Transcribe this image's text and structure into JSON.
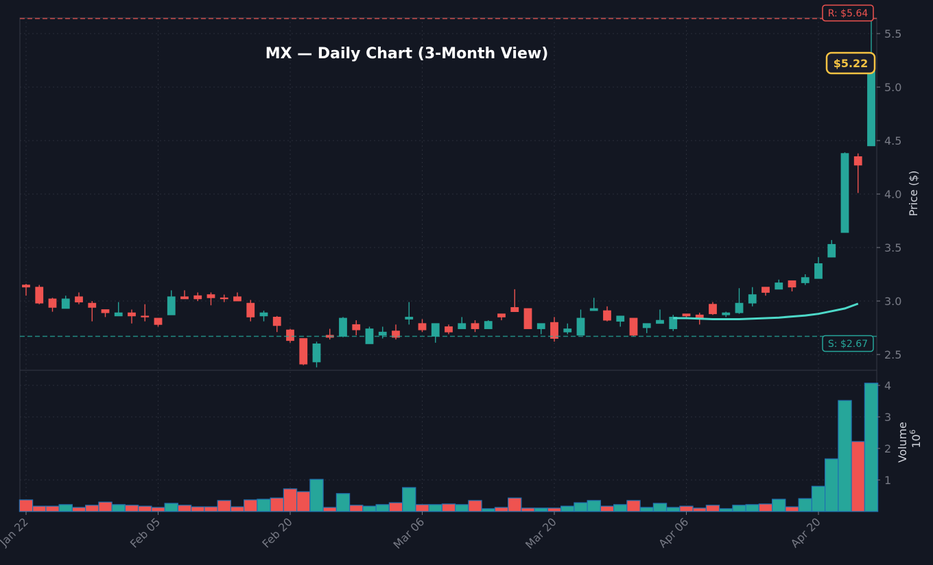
{
  "chart_data": {
    "type": "candlestick",
    "title": "MX — Daily Chart (3-Month View)",
    "ticker": "MX",
    "price_axis": {
      "label": "Price ($)",
      "ticks": [
        2.5,
        3.0,
        3.5,
        4.0,
        4.5,
        5.0,
        5.5
      ],
      "ylim": [
        2.34,
        5.67
      ]
    },
    "volume_axis": {
      "label": "Volume",
      "scale_label": "10^6",
      "ticks": [
        1,
        2,
        3,
        4
      ],
      "ylim": [
        0,
        4.1
      ]
    },
    "x_ticks": [
      {
        "label": "Jan 22",
        "index": 0
      },
      {
        "label": "Feb 05",
        "index": 10
      },
      {
        "label": "Feb 20",
        "index": 20
      },
      {
        "label": "Mar 06",
        "index": 30
      },
      {
        "label": "Mar 20",
        "index": 40
      },
      {
        "label": "Apr 06",
        "index": 50
      },
      {
        "label": "Apr 20",
        "index": 60
      }
    ],
    "resistance": {
      "label": "R: $5.64",
      "value": 5.64,
      "color": "#ef5350"
    },
    "support": {
      "label": "S: $2.67",
      "value": 2.67,
      "color": "#26a69a"
    },
    "current_price": {
      "label": "$5.22",
      "value": 5.22,
      "color": "#f6c343"
    },
    "moving_average": {
      "color": "#4dd9c9",
      "start_index": 49,
      "values": [
        2.84,
        2.84,
        2.835,
        2.83,
        2.83,
        2.83,
        2.835,
        2.84,
        2.845,
        2.855,
        2.865,
        2.88,
        2.905,
        2.93,
        2.975
      ]
    },
    "colors": {
      "up": "#26a69a",
      "down": "#ef5350",
      "background": "#131722",
      "grid": "#2a2e39"
    },
    "candles": [
      {
        "o": 3.15,
        "h": 3.16,
        "l": 3.05,
        "c": 3.13,
        "v": 0.37
      },
      {
        "o": 3.13,
        "h": 3.15,
        "l": 2.97,
        "c": 2.98,
        "v": 0.17
      },
      {
        "o": 3.02,
        "h": 3.03,
        "l": 2.9,
        "c": 2.94,
        "v": 0.17
      },
      {
        "o": 2.93,
        "h": 3.05,
        "l": 2.93,
        "c": 3.02,
        "v": 0.22
      },
      {
        "o": 3.04,
        "h": 3.08,
        "l": 2.97,
        "c": 2.99,
        "v": 0.13
      },
      {
        "o": 2.98,
        "h": 3.0,
        "l": 2.81,
        "c": 2.94,
        "v": 0.2
      },
      {
        "o": 2.92,
        "h": 2.92,
        "l": 2.85,
        "c": 2.89,
        "v": 0.3
      },
      {
        "o": 2.86,
        "h": 2.99,
        "l": 2.86,
        "c": 2.89,
        "v": 0.22
      },
      {
        "o": 2.89,
        "h": 2.92,
        "l": 2.79,
        "c": 2.86,
        "v": 0.2
      },
      {
        "o": 2.86,
        "h": 2.97,
        "l": 2.81,
        "c": 2.85,
        "v": 0.17
      },
      {
        "o": 2.84,
        "h": 2.84,
        "l": 2.76,
        "c": 2.78,
        "v": 0.13
      },
      {
        "o": 2.87,
        "h": 3.1,
        "l": 2.87,
        "c": 3.04,
        "v": 0.26
      },
      {
        "o": 3.04,
        "h": 3.1,
        "l": 3.02,
        "c": 3.02,
        "v": 0.2
      },
      {
        "o": 3.05,
        "h": 3.08,
        "l": 3.0,
        "c": 3.02,
        "v": 0.15
      },
      {
        "o": 3.06,
        "h": 3.08,
        "l": 2.96,
        "c": 3.03,
        "v": 0.15
      },
      {
        "o": 3.03,
        "h": 3.06,
        "l": 2.99,
        "c": 3.02,
        "v": 0.35
      },
      {
        "o": 3.04,
        "h": 3.08,
        "l": 3.0,
        "c": 3.0,
        "v": 0.15
      },
      {
        "o": 2.98,
        "h": 3.01,
        "l": 2.81,
        "c": 2.85,
        "v": 0.37
      },
      {
        "o": 2.86,
        "h": 2.91,
        "l": 2.81,
        "c": 2.89,
        "v": 0.39
      },
      {
        "o": 2.85,
        "h": 2.86,
        "l": 2.71,
        "c": 2.77,
        "v": 0.43
      },
      {
        "o": 2.73,
        "h": 2.74,
        "l": 2.61,
        "c": 2.63,
        "v": 0.72
      },
      {
        "o": 2.65,
        "h": 2.65,
        "l": 2.4,
        "c": 2.41,
        "v": 0.63
      },
      {
        "o": 2.43,
        "h": 2.62,
        "l": 2.38,
        "c": 2.6,
        "v": 1.02
      },
      {
        "o": 2.68,
        "h": 2.74,
        "l": 2.64,
        "c": 2.66,
        "v": 0.13
      },
      {
        "o": 2.67,
        "h": 2.85,
        "l": 2.66,
        "c": 2.84,
        "v": 0.57
      },
      {
        "o": 2.78,
        "h": 2.82,
        "l": 2.68,
        "c": 2.73,
        "v": 0.2
      },
      {
        "o": 2.6,
        "h": 2.76,
        "l": 2.6,
        "c": 2.74,
        "v": 0.17
      },
      {
        "o": 2.68,
        "h": 2.76,
        "l": 2.65,
        "c": 2.71,
        "v": 0.22
      },
      {
        "o": 2.72,
        "h": 2.78,
        "l": 2.64,
        "c": 2.66,
        "v": 0.28
      },
      {
        "o": 2.83,
        "h": 2.99,
        "l": 2.78,
        "c": 2.85,
        "v": 0.76
      },
      {
        "o": 2.79,
        "h": 2.83,
        "l": 2.71,
        "c": 2.73,
        "v": 0.22
      },
      {
        "o": 2.67,
        "h": 2.79,
        "l": 2.61,
        "c": 2.79,
        "v": 0.22
      },
      {
        "o": 2.76,
        "h": 2.78,
        "l": 2.69,
        "c": 2.71,
        "v": 0.24
      },
      {
        "o": 2.74,
        "h": 2.85,
        "l": 2.74,
        "c": 2.79,
        "v": 0.22
      },
      {
        "o": 2.79,
        "h": 2.82,
        "l": 2.71,
        "c": 2.74,
        "v": 0.35
      },
      {
        "o": 2.74,
        "h": 2.82,
        "l": 2.74,
        "c": 2.81,
        "v": 0.09
      },
      {
        "o": 2.88,
        "h": 2.88,
        "l": 2.82,
        "c": 2.85,
        "v": 0.13
      },
      {
        "o": 2.94,
        "h": 3.11,
        "l": 2.9,
        "c": 2.9,
        "v": 0.43
      },
      {
        "o": 2.93,
        "h": 2.93,
        "l": 2.74,
        "c": 2.74,
        "v": 0.11
      },
      {
        "o": 2.74,
        "h": 2.79,
        "l": 2.69,
        "c": 2.79,
        "v": 0.11
      },
      {
        "o": 2.8,
        "h": 2.85,
        "l": 2.62,
        "c": 2.65,
        "v": 0.11
      },
      {
        "o": 2.71,
        "h": 2.79,
        "l": 2.69,
        "c": 2.74,
        "v": 0.17
      },
      {
        "o": 2.68,
        "h": 2.92,
        "l": 2.68,
        "c": 2.84,
        "v": 0.28
      },
      {
        "o": 2.91,
        "h": 3.03,
        "l": 2.91,
        "c": 2.93,
        "v": 0.35
      },
      {
        "o": 2.91,
        "h": 2.95,
        "l": 2.81,
        "c": 2.82,
        "v": 0.17
      },
      {
        "o": 2.81,
        "h": 2.86,
        "l": 2.76,
        "c": 2.86,
        "v": 0.22
      },
      {
        "o": 2.84,
        "h": 2.84,
        "l": 2.67,
        "c": 2.68,
        "v": 0.35
      },
      {
        "o": 2.75,
        "h": 2.79,
        "l": 2.7,
        "c": 2.79,
        "v": 0.13
      },
      {
        "o": 2.79,
        "h": 2.92,
        "l": 2.79,
        "c": 2.82,
        "v": 0.26
      },
      {
        "o": 2.74,
        "h": 2.87,
        "l": 2.72,
        "c": 2.85,
        "v": 0.13
      },
      {
        "o": 2.88,
        "h": 2.88,
        "l": 2.83,
        "c": 2.86,
        "v": 0.17
      },
      {
        "o": 2.87,
        "h": 2.89,
        "l": 2.78,
        "c": 2.84,
        "v": 0.11
      },
      {
        "o": 2.97,
        "h": 2.99,
        "l": 2.87,
        "c": 2.88,
        "v": 0.2
      },
      {
        "o": 2.87,
        "h": 2.9,
        "l": 2.85,
        "c": 2.89,
        "v": 0.09
      },
      {
        "o": 2.89,
        "h": 3.12,
        "l": 2.88,
        "c": 2.98,
        "v": 0.2
      },
      {
        "o": 2.98,
        "h": 3.13,
        "l": 2.95,
        "c": 3.06,
        "v": 0.22
      },
      {
        "o": 3.13,
        "h": 3.13,
        "l": 3.05,
        "c": 3.08,
        "v": 0.24
      },
      {
        "o": 3.11,
        "h": 3.2,
        "l": 3.11,
        "c": 3.17,
        "v": 0.39
      },
      {
        "o": 3.19,
        "h": 3.19,
        "l": 3.09,
        "c": 3.13,
        "v": 0.15
      },
      {
        "o": 3.17,
        "h": 3.25,
        "l": 3.15,
        "c": 3.22,
        "v": 0.41
      },
      {
        "o": 3.21,
        "h": 3.41,
        "l": 3.21,
        "c": 3.35,
        "v": 0.8
      },
      {
        "o": 3.41,
        "h": 3.57,
        "l": 3.41,
        "c": 3.53,
        "v": 1.67
      },
      {
        "o": 3.64,
        "h": 4.39,
        "l": 3.64,
        "c": 4.38,
        "v": 3.52
      },
      {
        "o": 4.35,
        "h": 4.38,
        "l": 4.01,
        "c": 4.27,
        "v": 2.22
      },
      {
        "o": 4.45,
        "h": 5.64,
        "l": 4.45,
        "c": 5.15,
        "v": 4.07
      }
    ]
  }
}
